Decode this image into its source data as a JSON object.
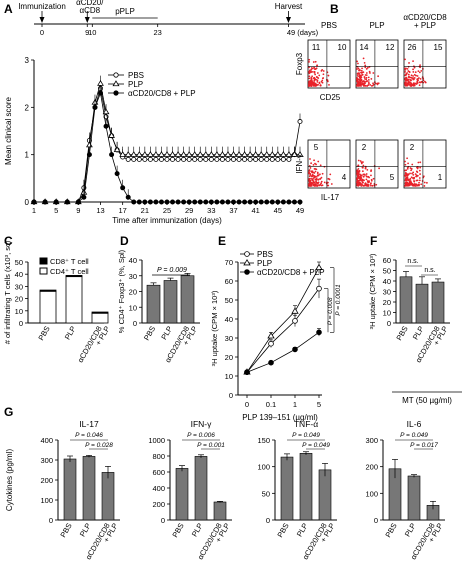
{
  "figure": {
    "panel_letters": [
      "A",
      "B",
      "C",
      "D",
      "E",
      "F",
      "G"
    ]
  },
  "chart_data": [
    {
      "panel": "A",
      "type": "line",
      "timeline": {
        "labels": [
          "Immunization",
          "αCD20/\nαCD8",
          "pPLP",
          "Harvest"
        ],
        "ticks": [
          0,
          9,
          10,
          23,
          49
        ],
        "tick_labels": [
          "0",
          "9",
          "10",
          "23",
          "49 (days)"
        ]
      },
      "ylabel": "Mean clinical score",
      "xlabel": "Time after immunization (days)",
      "x_ticks": [
        1,
        5,
        9,
        13,
        17,
        21,
        25,
        29,
        33,
        37,
        41,
        45,
        49
      ],
      "ylim": [
        0,
        3
      ],
      "y_ticks": [
        0,
        1,
        2,
        3
      ],
      "legend": [
        "PBS",
        "PLP",
        "αCD20/CD8 + PLP"
      ],
      "series": [
        {
          "name": "PBS",
          "marker": "circle-open",
          "x": [
            1,
            3,
            5,
            7,
            9,
            10,
            11,
            12,
            13,
            14,
            15,
            16,
            17,
            18,
            19,
            20,
            21,
            22,
            23,
            24,
            25,
            26,
            27,
            28,
            29,
            30,
            31,
            32,
            33,
            34,
            35,
            36,
            37,
            38,
            39,
            40,
            41,
            42,
            43,
            44,
            45,
            46,
            47,
            48,
            49
          ],
          "y": [
            0,
            0,
            0,
            0,
            0,
            0.3,
            1.3,
            2.0,
            2.4,
            1.8,
            1.4,
            1.1,
            0.95,
            0.9,
            0.9,
            0.9,
            0.9,
            0.9,
            0.9,
            0.9,
            0.9,
            0.9,
            0.9,
            0.9,
            0.9,
            0.9,
            0.9,
            0.9,
            0.9,
            0.9,
            0.9,
            0.9,
            0.9,
            0.9,
            0.9,
            0.9,
            0.9,
            0.9,
            0.9,
            0.9,
            0.9,
            0.9,
            0.9,
            1.0,
            1.7
          ]
        },
        {
          "name": "PLP",
          "marker": "triangle-open",
          "x": [
            1,
            3,
            5,
            7,
            9,
            10,
            11,
            12,
            13,
            14,
            15,
            16,
            17,
            18,
            19,
            20,
            21,
            22,
            23,
            24,
            25,
            26,
            27,
            28,
            29,
            30,
            31,
            32,
            33,
            34,
            35,
            36,
            37,
            38,
            39,
            40,
            41,
            42,
            43,
            44,
            45,
            46,
            47,
            48,
            49
          ],
          "y": [
            0,
            0,
            0,
            0,
            0,
            0.2,
            1.2,
            2.1,
            2.5,
            1.9,
            1.4,
            1.1,
            1.0,
            1.0,
            1.0,
            1.0,
            1.0,
            1.0,
            1.0,
            1.0,
            1.0,
            1.0,
            1.0,
            1.0,
            1.0,
            1.0,
            1.0,
            1.0,
            1.0,
            1.0,
            1.0,
            1.0,
            1.0,
            1.0,
            1.0,
            1.0,
            1.0,
            1.0,
            1.0,
            1.0,
            1.0,
            1.0,
            1.0,
            1.0,
            1.0
          ]
        },
        {
          "name": "αCD20/CD8 + PLP",
          "marker": "circle-filled",
          "x": [
            1,
            3,
            5,
            7,
            9,
            10,
            11,
            12,
            13,
            14,
            15,
            16,
            17,
            18,
            19,
            20,
            21,
            22,
            23,
            24,
            25,
            26,
            27,
            28,
            29,
            30,
            31,
            32,
            33,
            34,
            35,
            36,
            37,
            38,
            39,
            40,
            41,
            42,
            43,
            44,
            45,
            46,
            47,
            48,
            49
          ],
          "y": [
            0,
            0,
            0,
            0,
            0,
            0.1,
            1.0,
            2.0,
            2.3,
            1.6,
            1.0,
            0.6,
            0.3,
            0.1,
            0,
            0,
            0,
            0,
            0,
            0,
            0,
            0,
            0,
            0,
            0,
            0,
            0,
            0,
            0,
            0,
            0,
            0,
            0,
            0,
            0,
            0,
            0,
            0,
            0,
            0,
            0,
            0,
            0,
            0,
            0
          ]
        }
      ]
    },
    {
      "panel": "B",
      "type": "scatter",
      "columns": [
        "PBS",
        "PLP",
        "αCD20/CD8\n+ PLP"
      ],
      "row1": {
        "ylabel": "Foxp3",
        "xlabel": "CD25",
        "quadrant_values": [
          [
            "11",
            "10"
          ],
          [
            "14",
            "12"
          ],
          [
            "26",
            "15"
          ]
        ]
      },
      "row2": {
        "ylabel": "IFN-γ",
        "xlabel": "IL-17",
        "quadrant_values": [
          [
            "5",
            "4"
          ],
          [
            "2",
            "5"
          ],
          [
            "2",
            "1"
          ]
        ]
      }
    },
    {
      "panel": "C",
      "type": "bar",
      "ylabel": "# of infiltrating T cells (x10³, sc)",
      "ylim": [
        0,
        50
      ],
      "y_ticks": [
        0,
        10,
        20,
        30,
        40,
        50
      ],
      "categories": [
        "PBS",
        "PLP",
        "αCD20/CD8\n+ PLP"
      ],
      "legend": [
        "CD8⁺ T cell",
        "CD4⁺ T cell"
      ],
      "series": [
        {
          "name": "CD4⁺ T cell",
          "values": [
            26,
            38,
            8
          ]
        },
        {
          "name": "CD8⁺ T cell",
          "values": [
            1,
            1,
            1
          ]
        }
      ]
    },
    {
      "panel": "D",
      "type": "bar",
      "ylabel": "% CD4⁺ Foxp3⁺ (%, Spl)",
      "ylim": [
        0,
        40
      ],
      "y_ticks": [
        0,
        10,
        20,
        30,
        40
      ],
      "categories": [
        "PBS",
        "PLP",
        "αCD20/CD8\n+ PLP"
      ],
      "values": [
        24,
        27,
        30
      ],
      "errors": [
        1.5,
        1.5,
        1.5
      ],
      "pvalue": "P = 0.009"
    },
    {
      "panel": "E",
      "type": "line",
      "ylabel": "³H uptake (CPM × 10³)",
      "xlabel": "PLP 139–151 (µg/ml)",
      "categories": [
        "0",
        "0.1",
        "1",
        "5"
      ],
      "ylim": [
        0,
        70
      ],
      "y_ticks": [
        0,
        10,
        20,
        30,
        40,
        50,
        60,
        70
      ],
      "legend": [
        "PBS",
        "PLP",
        "αCD20/CD8 + PLP"
      ],
      "series": [
        {
          "name": "PBS",
          "marker": "circle-open",
          "values": [
            12,
            27,
            39,
            56
          ],
          "errors": [
            1,
            2,
            3,
            5
          ]
        },
        {
          "name": "PLP",
          "marker": "triangle-open",
          "values": [
            12,
            31,
            44,
            67
          ],
          "errors": [
            1,
            2,
            3,
            3
          ]
        },
        {
          "name": "αCD20/CD8 + PLP",
          "marker": "circle-filled",
          "values": [
            12,
            17,
            24,
            33
          ],
          "errors": [
            1,
            1,
            1,
            2
          ]
        }
      ],
      "pvalues": [
        "P = 0.0001",
        "P = 0.008"
      ]
    },
    {
      "panel": "F",
      "type": "bar",
      "ylabel": "³H uptake (CPM × 10³)",
      "ylim": [
        0,
        60
      ],
      "y_ticks": [
        0,
        10,
        20,
        30,
        40,
        50,
        60
      ],
      "categories": [
        "PBS",
        "PLP",
        "αCD20/CD8\n+ PLP"
      ],
      "values": [
        44,
        37,
        39
      ],
      "errors": [
        5,
        7,
        3
      ],
      "annotations": [
        "n.s.",
        "n.s."
      ],
      "xlabel": "MT (50 µg/ml)"
    },
    {
      "panel": "G",
      "type": "bar",
      "ylabel": "Cytokines (pg/ml)",
      "categories": [
        "PBS",
        "PLP",
        "αCD20/CD8\n+ PLP"
      ],
      "subcharts": [
        {
          "title": "IL-17",
          "ylim": [
            0,
            400
          ],
          "y_ticks": [
            0,
            100,
            200,
            300,
            400
          ],
          "values": [
            305,
            318,
            238
          ],
          "errors": [
            15,
            5,
            30
          ],
          "pvalues": [
            "P = 0.046",
            "P = 0.028"
          ]
        },
        {
          "title": "IFN-γ",
          "ylim": [
            0,
            1000
          ],
          "y_ticks": [
            0,
            200,
            400,
            600,
            800,
            1000
          ],
          "values": [
            645,
            795,
            225
          ],
          "errors": [
            35,
            20,
            8
          ],
          "pvalues": [
            "P = 0.006",
            "P = 0.001"
          ]
        },
        {
          "title": "TNF-α",
          "ylim": [
            0,
            150
          ],
          "y_ticks": [
            0,
            50,
            100,
            150
          ],
          "values": [
            118,
            125,
            94
          ],
          "errors": [
            6,
            3,
            12
          ],
          "pvalues": [
            "P = 0.049",
            "P = 0.049"
          ]
        },
        {
          "title": "IL-6",
          "ylim": [
            0,
            300
          ],
          "y_ticks": [
            0,
            100,
            200,
            300
          ],
          "values": [
            192,
            165,
            55
          ],
          "errors": [
            35,
            5,
            15
          ],
          "pvalues": [
            "P = 0.049",
            "P = 0.017"
          ]
        }
      ]
    }
  ]
}
